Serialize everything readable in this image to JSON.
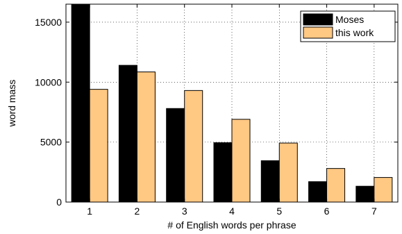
{
  "chart_data": {
    "type": "bar",
    "categories": [
      "1",
      "2",
      "3",
      "4",
      "5",
      "6",
      "7"
    ],
    "series": [
      {
        "name": "Moses",
        "values": [
          16500,
          11400,
          7800,
          4950,
          3450,
          1700,
          1320
        ],
        "color": "#000000"
      },
      {
        "name": "this work",
        "values": [
          9400,
          10850,
          9300,
          6900,
          4920,
          2800,
          2050
        ],
        "color": "#FFC883"
      }
    ],
    "xlabel": "# of English words per phrase",
    "ylabel": "word mass",
    "ylim": [
      0,
      16500
    ],
    "yticks": [
      0,
      5000,
      10000,
      15000
    ],
    "grid": true,
    "legend_position": "top-right"
  }
}
